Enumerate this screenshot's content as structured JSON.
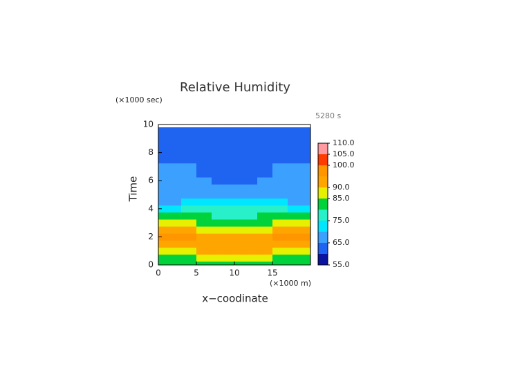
{
  "chart_data": {
    "type": "contour",
    "title": "Relative Humidity",
    "annotation": "5280 s",
    "y_label": "Time",
    "y_unit_label": "(×1000 sec)",
    "x_label": "x−coodinate",
    "x_unit_label": "(×1000 m)",
    "x": [
      0,
      2,
      4,
      6,
      8,
      10,
      12,
      14,
      16,
      18,
      20
    ],
    "y": [
      0,
      0.5,
      1,
      1.5,
      2,
      2.5,
      3,
      3.5,
      4,
      4.5,
      5,
      5.5,
      6,
      6.5,
      7,
      7.5,
      8,
      8.5,
      9,
      9.5,
      9.8
    ],
    "z": [
      [
        82,
        82,
        82,
        82,
        82,
        82,
        82,
        82,
        82,
        82,
        82
      ],
      [
        84,
        84,
        84,
        85,
        86,
        86,
        86,
        85,
        84,
        84,
        84
      ],
      [
        88,
        88,
        89,
        90,
        91,
        91,
        91,
        90,
        89,
        88,
        88
      ],
      [
        92,
        92,
        92,
        93,
        94,
        94,
        94,
        93,
        92,
        92,
        92
      ],
      [
        95,
        95,
        95,
        94,
        93,
        93,
        93,
        94,
        95,
        95,
        95
      ],
      [
        93,
        93,
        92,
        89,
        88,
        87,
        88,
        89,
        92,
        93,
        93
      ],
      [
        87,
        87,
        86,
        84,
        83,
        82,
        83,
        84,
        86,
        87,
        87
      ],
      [
        82,
        82,
        81,
        80,
        79,
        79,
        79,
        80,
        81,
        82,
        82
      ],
      [
        74,
        74,
        75,
        76,
        77,
        77,
        77,
        76,
        75,
        74,
        74
      ],
      [
        69,
        69,
        70,
        72,
        74,
        74,
        74,
        72,
        70,
        69,
        69
      ],
      [
        68,
        68,
        68,
        68,
        68,
        68,
        68,
        68,
        68,
        68,
        68
      ],
      [
        67,
        67,
        67,
        66,
        66,
        66,
        66,
        66,
        67,
        67,
        67
      ],
      [
        67,
        67,
        66,
        65,
        64,
        64,
        64,
        65,
        66,
        67,
        67
      ],
      [
        67,
        67,
        66,
        64,
        62,
        62,
        62,
        64,
        66,
        67,
        67
      ],
      [
        66,
        66,
        65,
        63,
        62,
        62,
        62,
        63,
        65,
        66,
        66
      ],
      [
        62,
        62,
        62,
        62,
        62,
        62,
        62,
        62,
        62,
        62,
        62
      ],
      [
        62,
        62,
        62,
        62,
        62,
        62,
        62,
        62,
        62,
        62,
        62
      ],
      [
        62,
        62,
        62,
        62,
        62,
        62,
        62,
        62,
        62,
        62,
        62
      ],
      [
        62,
        62,
        62,
        62,
        62,
        62,
        62,
        62,
        62,
        62,
        62
      ],
      [
        62,
        62,
        62,
        62,
        62,
        62,
        62,
        62,
        62,
        62,
        62
      ],
      [
        62,
        62,
        62,
        62,
        62,
        62,
        62,
        62,
        62,
        62,
        62
      ]
    ],
    "xlim": [
      0,
      20
    ],
    "ylim": [
      0,
      10
    ],
    "xticks": [
      0,
      5,
      10,
      15
    ],
    "yticks": [
      0,
      2,
      4,
      6,
      8,
      10
    ],
    "levels": [
      55,
      60,
      65,
      70,
      75,
      80,
      85,
      90,
      95,
      100,
      105,
      110
    ],
    "colors": [
      "#0a14a0",
      "#1e64f0",
      "#3ca0ff",
      "#00e6ff",
      "#28f0c8",
      "#00d23c",
      "#e6f000",
      "#ffa500",
      "#ff9600",
      "#ff3c00",
      "#ff9aa0"
    ],
    "colorbar_ticks": [
      {
        "value": 55,
        "label": "55.0"
      },
      {
        "value": 65,
        "label": "65.0"
      },
      {
        "value": 75,
        "label": "75.0"
      },
      {
        "value": 85,
        "label": "85.0"
      },
      {
        "value": 90,
        "label": "90.0"
      },
      {
        "value": 100,
        "label": "100.0"
      },
      {
        "value": 105,
        "label": "105.0"
      },
      {
        "value": 110,
        "label": "110.0"
      }
    ]
  }
}
